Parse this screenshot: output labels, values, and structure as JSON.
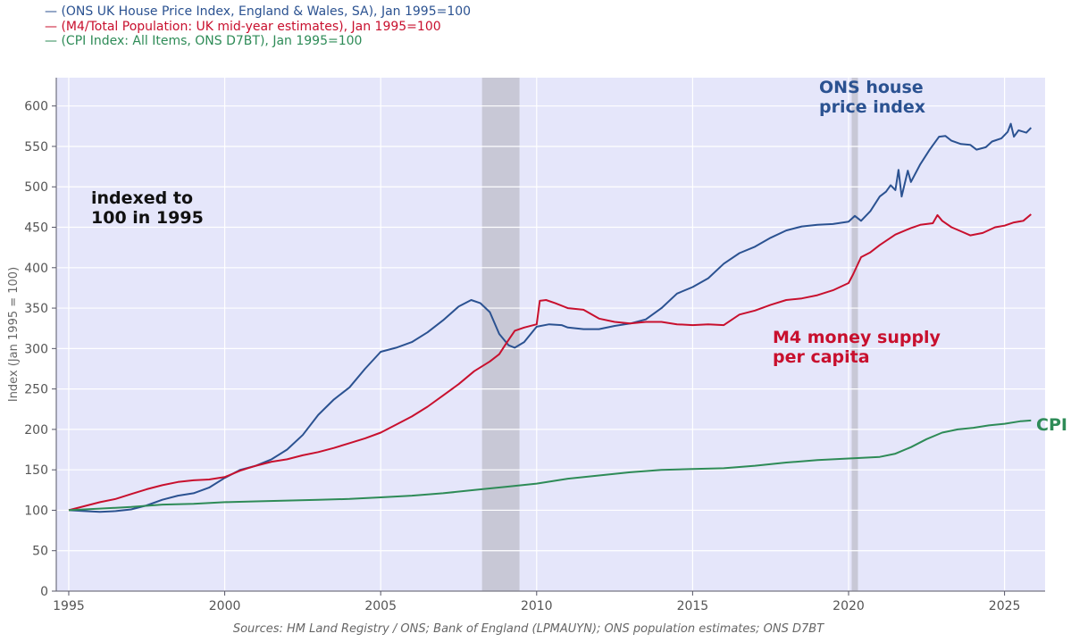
{
  "chart_data": {
    "type": "line",
    "title": "",
    "xlabel": "",
    "ylabel": "Index (Jan 1995 = 100)",
    "xlim": [
      1994.6,
      2026.3
    ],
    "ylim": [
      0,
      635
    ],
    "x_ticks": [
      1995,
      2000,
      2005,
      2010,
      2015,
      2020,
      2025
    ],
    "y_ticks": [
      0,
      50,
      100,
      150,
      200,
      250,
      300,
      350,
      400,
      450,
      500,
      550,
      600
    ],
    "grid": true,
    "legend_position": "top-left, outside plot",
    "recession_bands": [
      [
        2008.25,
        2009.45
      ],
      [
        2020.1,
        2020.3
      ]
    ],
    "series": [
      {
        "name": "— (ONS UK House Price Index, England & Wales, SA), Jan 1995=100",
        "color": "#2b5291",
        "points": [
          [
            1995,
            100
          ],
          [
            1995.5,
            99
          ],
          [
            1996,
            98
          ],
          [
            1996.5,
            99
          ],
          [
            1997,
            101
          ],
          [
            1997.5,
            106
          ],
          [
            1998,
            113
          ],
          [
            1998.5,
            118
          ],
          [
            1999,
            121
          ],
          [
            1999.5,
            128
          ],
          [
            2000,
            140
          ],
          [
            2000.5,
            150
          ],
          [
            2001,
            155
          ],
          [
            2001.5,
            163
          ],
          [
            2002,
            175
          ],
          [
            2002.5,
            193
          ],
          [
            2003,
            218
          ],
          [
            2003.5,
            237
          ],
          [
            2004,
            252
          ],
          [
            2004.5,
            275
          ],
          [
            2005,
            296
          ],
          [
            2005.5,
            301
          ],
          [
            2006,
            308
          ],
          [
            2006.5,
            320
          ],
          [
            2007,
            335
          ],
          [
            2007.5,
            352
          ],
          [
            2007.9,
            360
          ],
          [
            2008.2,
            356
          ],
          [
            2008.5,
            345
          ],
          [
            2008.8,
            318
          ],
          [
            2009.1,
            304
          ],
          [
            2009.3,
            301
          ],
          [
            2009.6,
            308
          ],
          [
            2010,
            327
          ],
          [
            2010.4,
            330
          ],
          [
            2010.8,
            329
          ],
          [
            2011,
            326
          ],
          [
            2011.5,
            324
          ],
          [
            2012,
            324
          ],
          [
            2012.5,
            328
          ],
          [
            2013,
            331
          ],
          [
            2013.5,
            336
          ],
          [
            2014,
            350
          ],
          [
            2014.5,
            368
          ],
          [
            2015,
            376
          ],
          [
            2015.5,
            387
          ],
          [
            2016,
            405
          ],
          [
            2016.5,
            418
          ],
          [
            2017,
            426
          ],
          [
            2017.5,
            437
          ],
          [
            2018,
            446
          ],
          [
            2018.5,
            451
          ],
          [
            2019,
            453
          ],
          [
            2019.5,
            454
          ],
          [
            2020,
            457
          ],
          [
            2020.2,
            464
          ],
          [
            2020.4,
            458
          ],
          [
            2020.7,
            470
          ],
          [
            2021,
            488
          ],
          [
            2021.2,
            494
          ],
          [
            2021.35,
            502
          ],
          [
            2021.5,
            496
          ],
          [
            2021.6,
            521
          ],
          [
            2021.7,
            488
          ],
          [
            2021.9,
            520
          ],
          [
            2022,
            506
          ],
          [
            2022.3,
            528
          ],
          [
            2022.6,
            546
          ],
          [
            2022.9,
            562
          ],
          [
            2023.1,
            563
          ],
          [
            2023.3,
            557
          ],
          [
            2023.6,
            553
          ],
          [
            2023.9,
            552
          ],
          [
            2024.1,
            546
          ],
          [
            2024.4,
            549
          ],
          [
            2024.6,
            556
          ],
          [
            2024.9,
            560
          ],
          [
            2025.1,
            568
          ],
          [
            2025.2,
            578
          ],
          [
            2025.3,
            562
          ],
          [
            2025.45,
            570
          ],
          [
            2025.7,
            567
          ],
          [
            2025.85,
            573
          ]
        ]
      },
      {
        "name": "— (M4/Total Population: UK mid-year estimates), Jan 1995=100",
        "color": "#c8102e",
        "points": [
          [
            1995,
            100
          ],
          [
            1995.5,
            105
          ],
          [
            1996,
            110
          ],
          [
            1996.5,
            114
          ],
          [
            1997,
            120
          ],
          [
            1997.5,
            126
          ],
          [
            1998,
            131
          ],
          [
            1998.5,
            135
          ],
          [
            1999,
            137
          ],
          [
            1999.5,
            138
          ],
          [
            2000,
            141
          ],
          [
            2000.5,
            149
          ],
          [
            2001,
            155
          ],
          [
            2001.5,
            160
          ],
          [
            2002,
            163
          ],
          [
            2002.5,
            168
          ],
          [
            2003,
            172
          ],
          [
            2003.5,
            177
          ],
          [
            2004,
            183
          ],
          [
            2004.5,
            189
          ],
          [
            2005,
            196
          ],
          [
            2005.5,
            206
          ],
          [
            2006,
            216
          ],
          [
            2006.5,
            228
          ],
          [
            2007,
            242
          ],
          [
            2007.5,
            256
          ],
          [
            2008,
            272
          ],
          [
            2008.5,
            284
          ],
          [
            2008.8,
            293
          ],
          [
            2009,
            305
          ],
          [
            2009.3,
            322
          ],
          [
            2009.6,
            326
          ],
          [
            2010,
            330
          ],
          [
            2010.1,
            359
          ],
          [
            2010.3,
            360
          ],
          [
            2010.6,
            356
          ],
          [
            2011,
            350
          ],
          [
            2011.5,
            348
          ],
          [
            2012,
            337
          ],
          [
            2012.5,
            333
          ],
          [
            2013,
            331
          ],
          [
            2013.5,
            333
          ],
          [
            2014,
            333
          ],
          [
            2014.5,
            330
          ],
          [
            2015,
            329
          ],
          [
            2015.5,
            330
          ],
          [
            2016,
            329
          ],
          [
            2016.5,
            342
          ],
          [
            2017,
            347
          ],
          [
            2017.5,
            354
          ],
          [
            2018,
            360
          ],
          [
            2018.5,
            362
          ],
          [
            2019,
            366
          ],
          [
            2019.5,
            372
          ],
          [
            2020,
            381
          ],
          [
            2020.15,
            392
          ],
          [
            2020.4,
            413
          ],
          [
            2020.7,
            419
          ],
          [
            2021,
            428
          ],
          [
            2021.5,
            441
          ],
          [
            2022,
            449
          ],
          [
            2022.3,
            453
          ],
          [
            2022.7,
            455
          ],
          [
            2022.85,
            465
          ],
          [
            2023,
            458
          ],
          [
            2023.3,
            450
          ],
          [
            2023.6,
            445
          ],
          [
            2023.9,
            440
          ],
          [
            2024.3,
            443
          ],
          [
            2024.7,
            450
          ],
          [
            2025,
            452
          ],
          [
            2025.3,
            456
          ],
          [
            2025.6,
            458
          ],
          [
            2025.85,
            466
          ]
        ]
      },
      {
        "name": "— (CPI Index: All Items, ONS D7BT), Jan 1995=100",
        "color": "#2e8b57",
        "points": [
          [
            1995,
            100
          ],
          [
            1996,
            102
          ],
          [
            1997,
            104
          ],
          [
            1998,
            107
          ],
          [
            1999,
            108
          ],
          [
            2000,
            110
          ],
          [
            2001,
            111
          ],
          [
            2002,
            112
          ],
          [
            2003,
            113
          ],
          [
            2004,
            114
          ],
          [
            2005,
            116
          ],
          [
            2006,
            118
          ],
          [
            2007,
            121
          ],
          [
            2008,
            125
          ],
          [
            2009,
            129
          ],
          [
            2010,
            133
          ],
          [
            2011,
            139
          ],
          [
            2012,
            143
          ],
          [
            2013,
            147
          ],
          [
            2014,
            150
          ],
          [
            2015,
            151
          ],
          [
            2016,
            152
          ],
          [
            2017,
            155
          ],
          [
            2018,
            159
          ],
          [
            2019,
            162
          ],
          [
            2020,
            164
          ],
          [
            2021,
            166
          ],
          [
            2021.5,
            170
          ],
          [
            2022,
            178
          ],
          [
            2022.5,
            188
          ],
          [
            2023,
            196
          ],
          [
            2023.5,
            200
          ],
          [
            2024,
            202
          ],
          [
            2024.5,
            205
          ],
          [
            2025,
            207
          ],
          [
            2025.5,
            210
          ],
          [
            2025.85,
            211
          ]
        ]
      }
    ],
    "annotations": {
      "indexed": [
        "indexed to",
        "100 in 1995"
      ],
      "hpi": [
        "ONS house",
        "price index"
      ],
      "m4": [
        "M4 money supply",
        "per capita"
      ],
      "cpi": "CPI"
    },
    "source_note": "Sources: HM Land Registry / ONS; Bank of England (LPMAUYN); ONS population estimates; ONS D7BT"
  }
}
